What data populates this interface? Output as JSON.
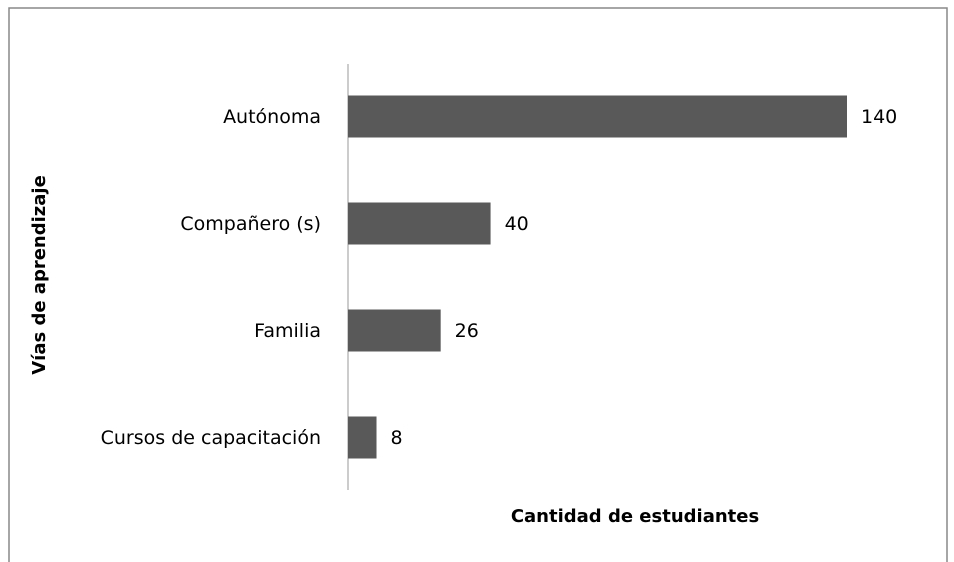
{
  "chart_data": {
    "type": "barh",
    "xlabel": "Cantidad de estudiantes",
    "ylabel": "Vías de aprendizaje",
    "categories": [
      "Autónoma",
      "Compañero (s)",
      "Familia",
      "Cursos de capacitación"
    ],
    "values": [
      140,
      40,
      26,
      8
    ],
    "color": "#595959"
  }
}
